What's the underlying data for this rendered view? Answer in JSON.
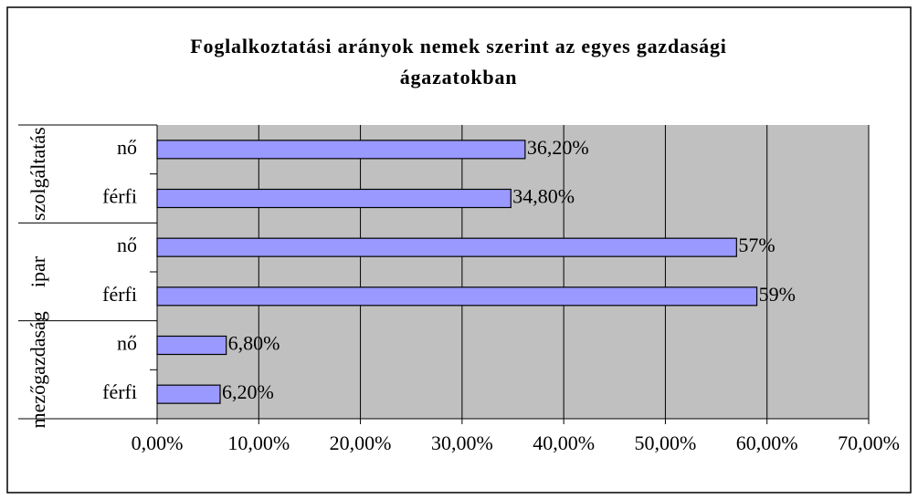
{
  "chart_data": {
    "type": "hbar",
    "title": "Foglalkoztatási arányok nemek szerint az egyes gazdasági ágazatokban",
    "groups": [
      "mezőgazdaság",
      "ipar",
      "szolgáltatás"
    ],
    "categories": [
      "férfi",
      "nő",
      "férfi",
      "nő",
      "férfi",
      "nő"
    ],
    "values": [
      6.2,
      6.8,
      59,
      57,
      34.8,
      36.2
    ],
    "value_labels": [
      "6,20%",
      "6,80%",
      "59%",
      "57%",
      "34,80%",
      "36,20%"
    ],
    "color": "#9999ff",
    "xlim": [
      0,
      70
    ],
    "xticks": [
      {
        "value": 0,
        "label": "0,00%"
      },
      {
        "value": 10,
        "label": "10,00%"
      },
      {
        "value": 20,
        "label": "20,00%"
      },
      {
        "value": 30,
        "label": "30,00%"
      },
      {
        "value": 40,
        "label": "40,00%"
      },
      {
        "value": 50,
        "label": "50,00%"
      },
      {
        "value": 60,
        "label": "60,00%"
      },
      {
        "value": 70,
        "label": "70,00%"
      }
    ],
    "grid": true
  }
}
